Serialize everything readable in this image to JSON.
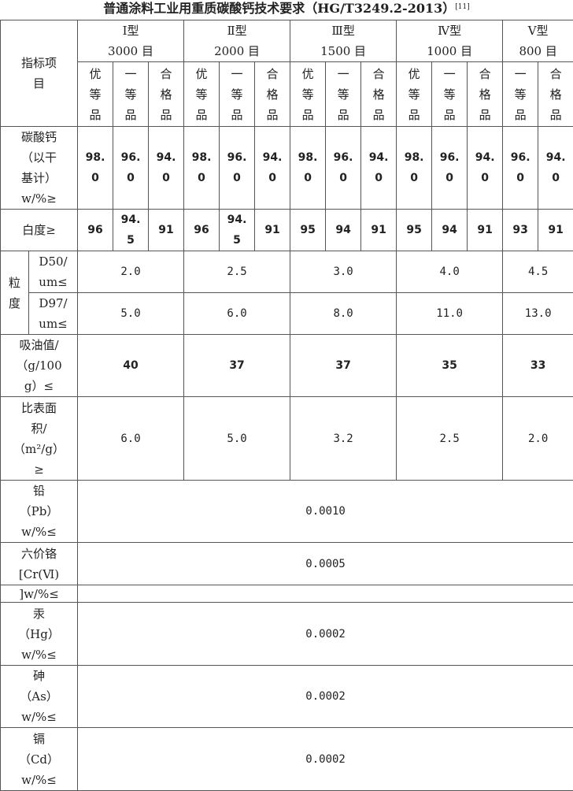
{
  "title": "普通涂料工业用重质碳酸钙技术要求（HG/T3249.2-2013）",
  "title_ref": "[11]",
  "header": {
    "item_label": "指标项\n目",
    "types": [
      {
        "type": "Ⅰ型",
        "mesh": "3000 目"
      },
      {
        "type": "Ⅱ型",
        "mesh": "2000 目"
      },
      {
        "type": "Ⅲ型",
        "mesh": "1500 目"
      },
      {
        "type": "Ⅳ型",
        "mesh": "1000 目"
      },
      {
        "type": "Ⅴ型",
        "mesh": "800 目"
      }
    ],
    "grades": {
      "superior": "优\n等\n品",
      "first": "一\n等\n品",
      "qualified": "合\n格\n品"
    }
  },
  "rows": {
    "caco3": {
      "label": "碳酸钙\n（以干\n基计）\nw/%≥",
      "values": [
        "98.0",
        "96.0",
        "94.0",
        "98.0",
        "96.0",
        "94.0",
        "98.0",
        "96.0",
        "94.0",
        "98.0",
        "96.0",
        "94.0",
        "96.0",
        "94.0"
      ]
    },
    "whiteness": {
      "label": "白度≥",
      "values": [
        "96",
        "94.5",
        "91",
        "96",
        "94.5",
        "91",
        "95",
        "94",
        "91",
        "95",
        "94",
        "91",
        "93",
        "91"
      ]
    },
    "particle_size": {
      "label": "粒\n度",
      "d50": {
        "label": "D50/\num≤",
        "values": [
          "2.0",
          "2.5",
          "3.0",
          "4.0",
          "4.5"
        ]
      },
      "d97": {
        "label": "D97/\num≤",
        "values": [
          "5.0",
          "6.0",
          "8.0",
          "11.0",
          "13.0"
        ]
      }
    },
    "oil_absorption": {
      "label": "吸油值/\n（g/100\ng）≤",
      "values": [
        "40",
        "37",
        "37",
        "35",
        "33"
      ]
    },
    "specific_surface": {
      "label": "比表面\n积/\n（m²/g）\n≥",
      "values": [
        "6.0",
        "5.0",
        "3.2",
        "2.5",
        "2.0"
      ]
    },
    "lead": {
      "label": "铅\n（Pb）\nw/%≤",
      "value": "0.0010"
    },
    "chromium": {
      "label": "六价铬\n[Cr(Ⅵ)",
      "label_cont": "]w/%≤",
      "value": "0.0005"
    },
    "mercury": {
      "label": "汞\n（Hg）\nw/%≤",
      "value": "0.0002"
    },
    "arsenic": {
      "label": "砷\n（As）\nw/%≤",
      "value": "0.0002"
    },
    "cadmium": {
      "label": "镉\n（Cd）\nw/%≤",
      "value": "0.0002"
    }
  }
}
